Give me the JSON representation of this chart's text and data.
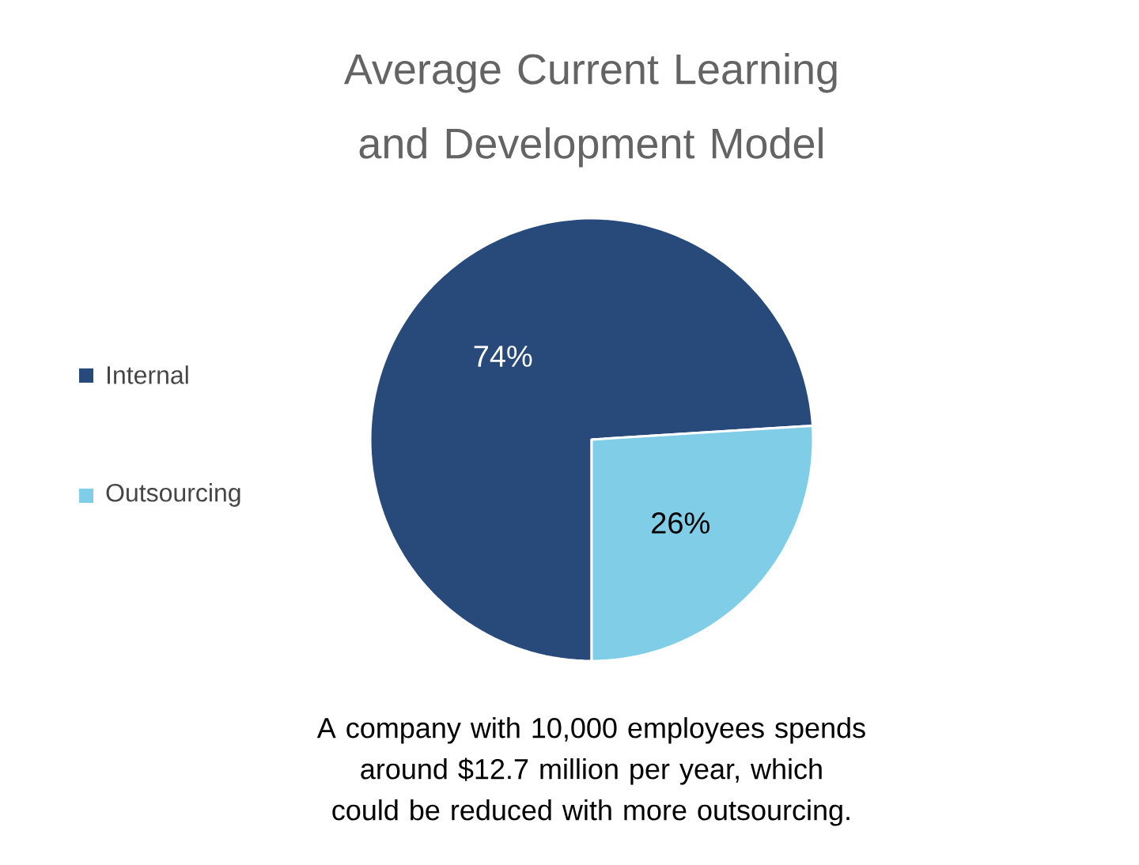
{
  "chart_data": {
    "type": "pie",
    "title": "Average Current Learning and Development Model",
    "categories": [
      "Internal",
      "Outsourcing"
    ],
    "values": [
      74,
      26
    ],
    "colors": [
      "#284a7a",
      "#7fcde6"
    ],
    "value_labels": [
      "74%",
      "26%"
    ],
    "legend": "left",
    "annotations": [
      "A company with 10,000 employees spends around $12.7 million per year, which could be reduced with more outsourcing."
    ]
  }
}
